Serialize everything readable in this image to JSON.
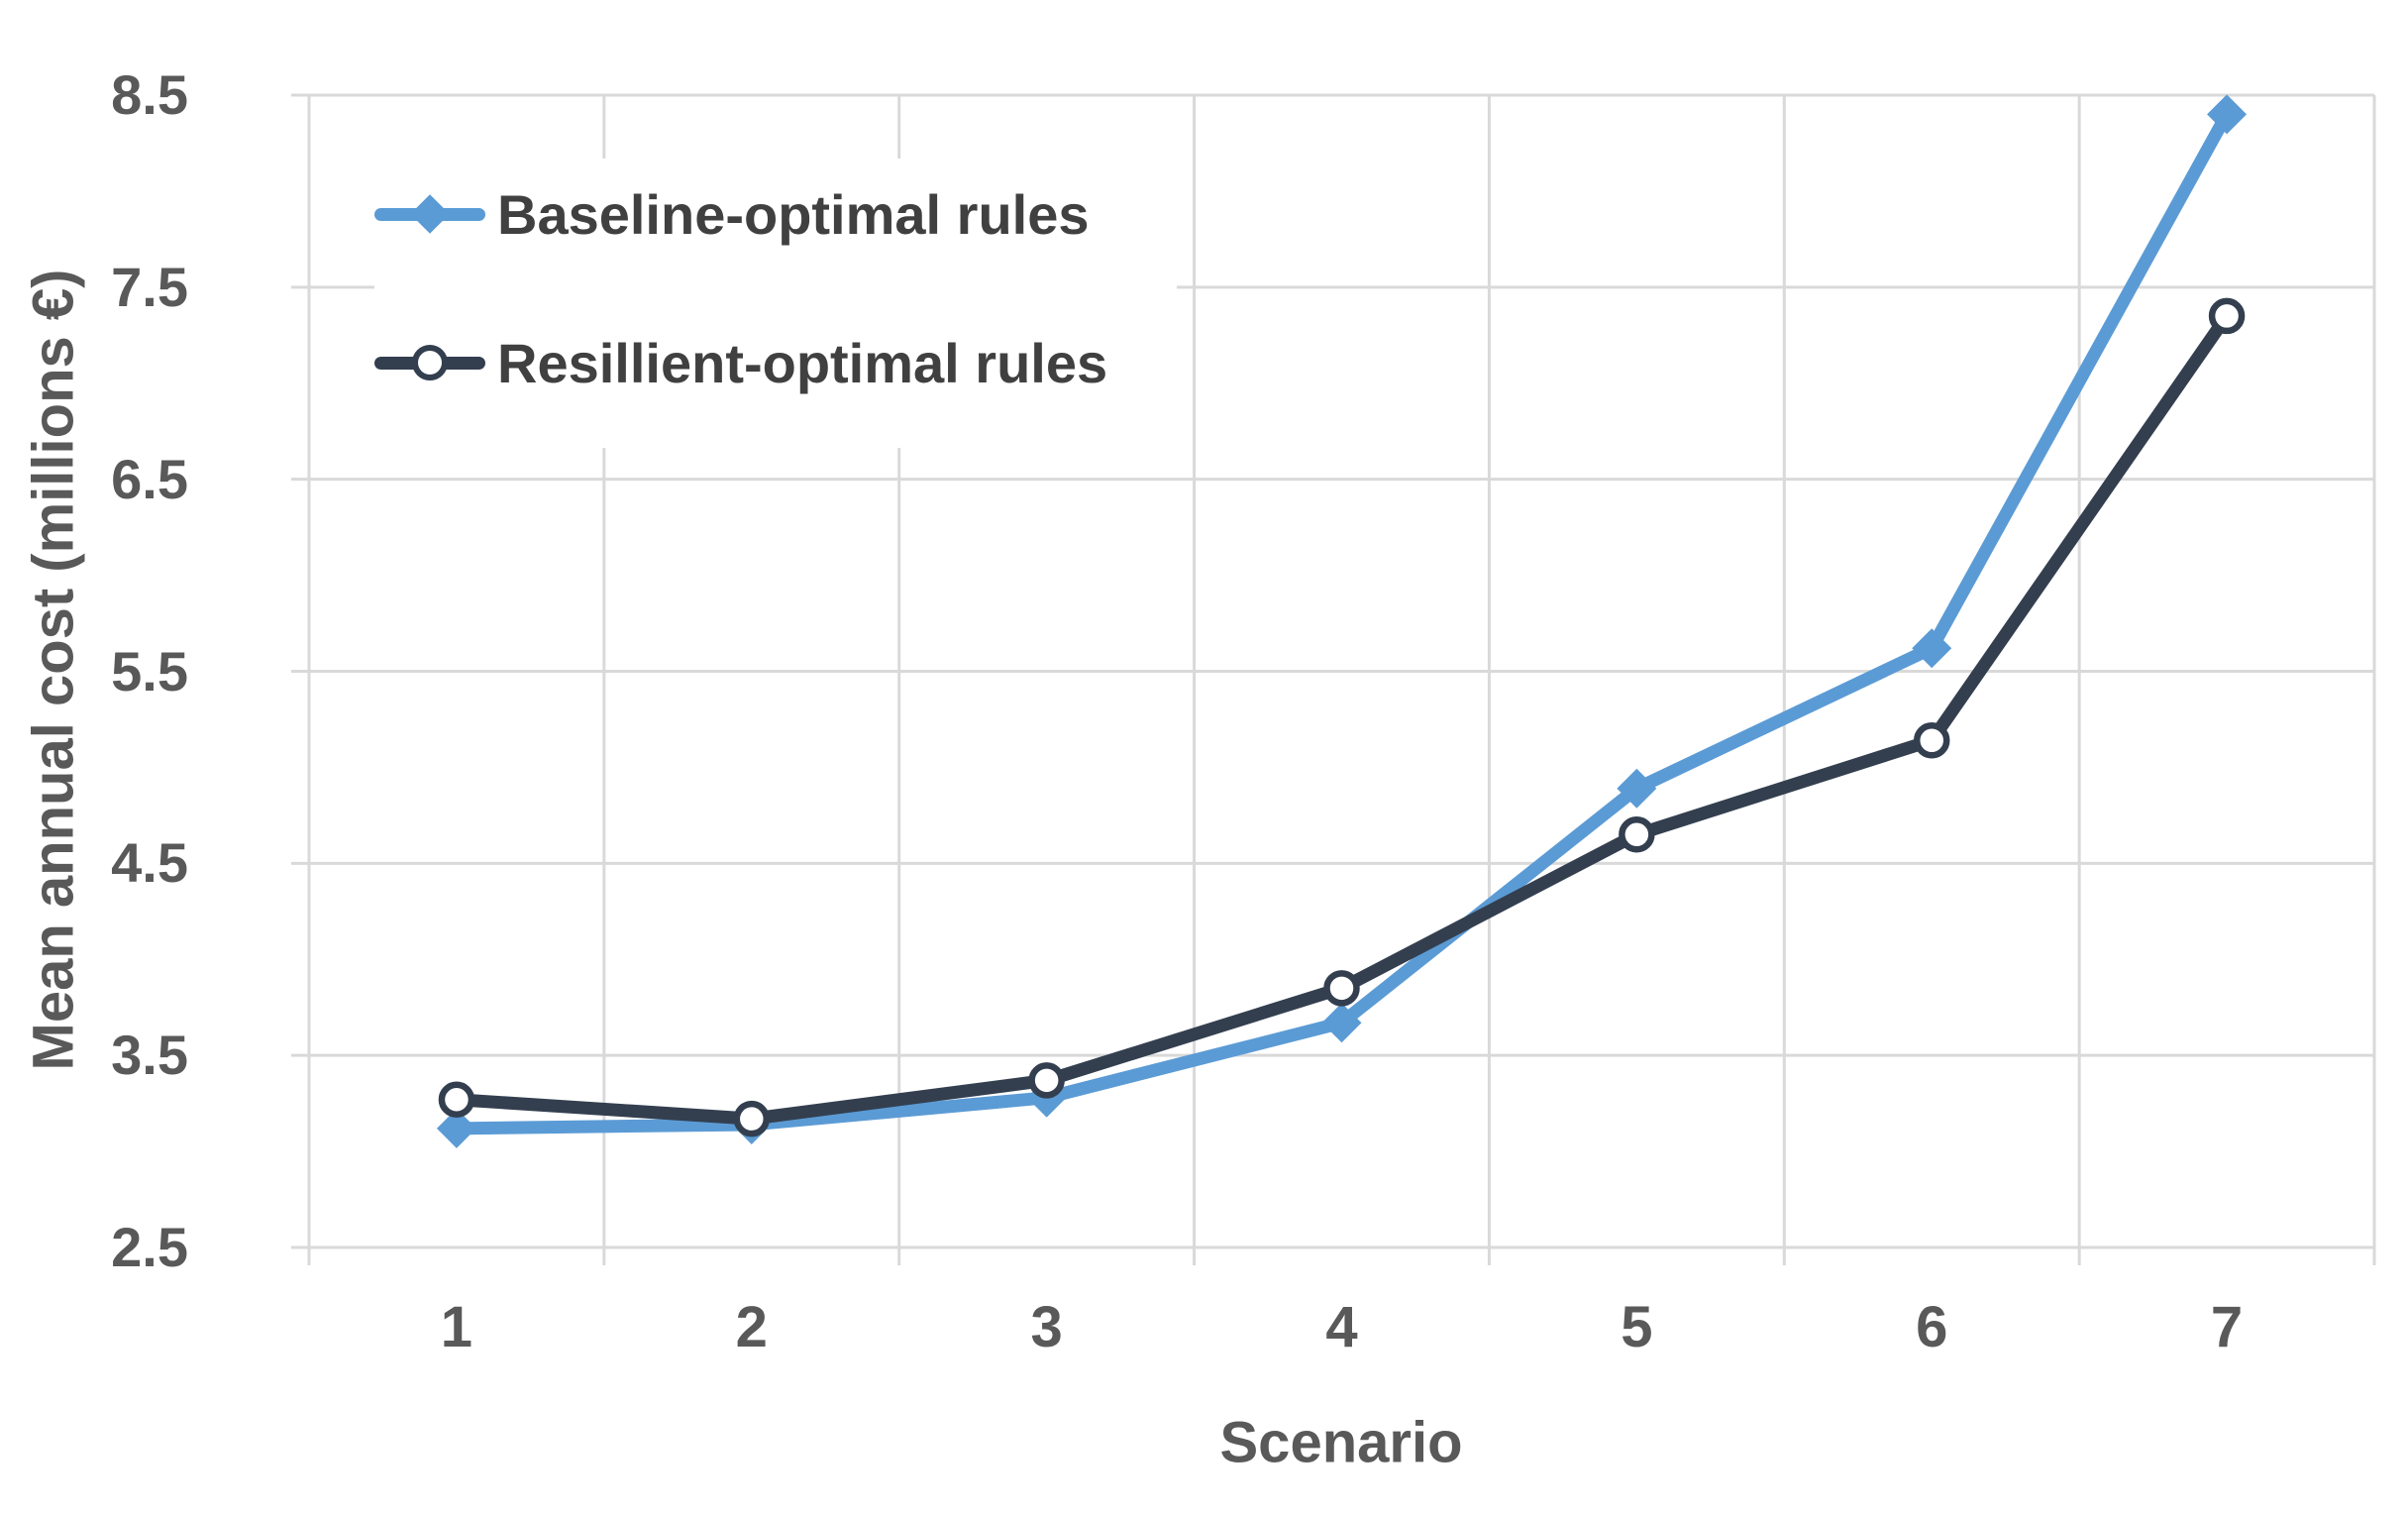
{
  "chart_data": {
    "type": "line",
    "title": "",
    "xlabel": "Scenario",
    "ylabel": "Mean annual cost (millions €)",
    "categories": [
      "1",
      "2",
      "3",
      "4",
      "5",
      "6",
      "7"
    ],
    "series": [
      {
        "name": "Baseline-optimal rules",
        "color": "#5B9BD5",
        "marker": "diamond",
        "values": [
          3.12,
          3.14,
          3.28,
          3.67,
          4.89,
          5.62,
          8.4
        ]
      },
      {
        "name": "Resillient-optimal rules",
        "color": "#333F4F",
        "marker": "open-circle",
        "values": [
          3.27,
          3.17,
          3.37,
          3.85,
          4.65,
          5.14,
          7.35
        ]
      }
    ],
    "ylim": [
      2.5,
      8.5
    ],
    "yticks": [
      "8.5",
      "7.5",
      "6.5",
      "5.5",
      "4.5",
      "3.5",
      "2.5"
    ],
    "grid": true,
    "legend_position": "inside-top-left"
  },
  "colors": {
    "gridline": "#D9D9D9",
    "axis_text": "#595959",
    "legend_text": "#404040",
    "background": "#FFFFFF"
  }
}
